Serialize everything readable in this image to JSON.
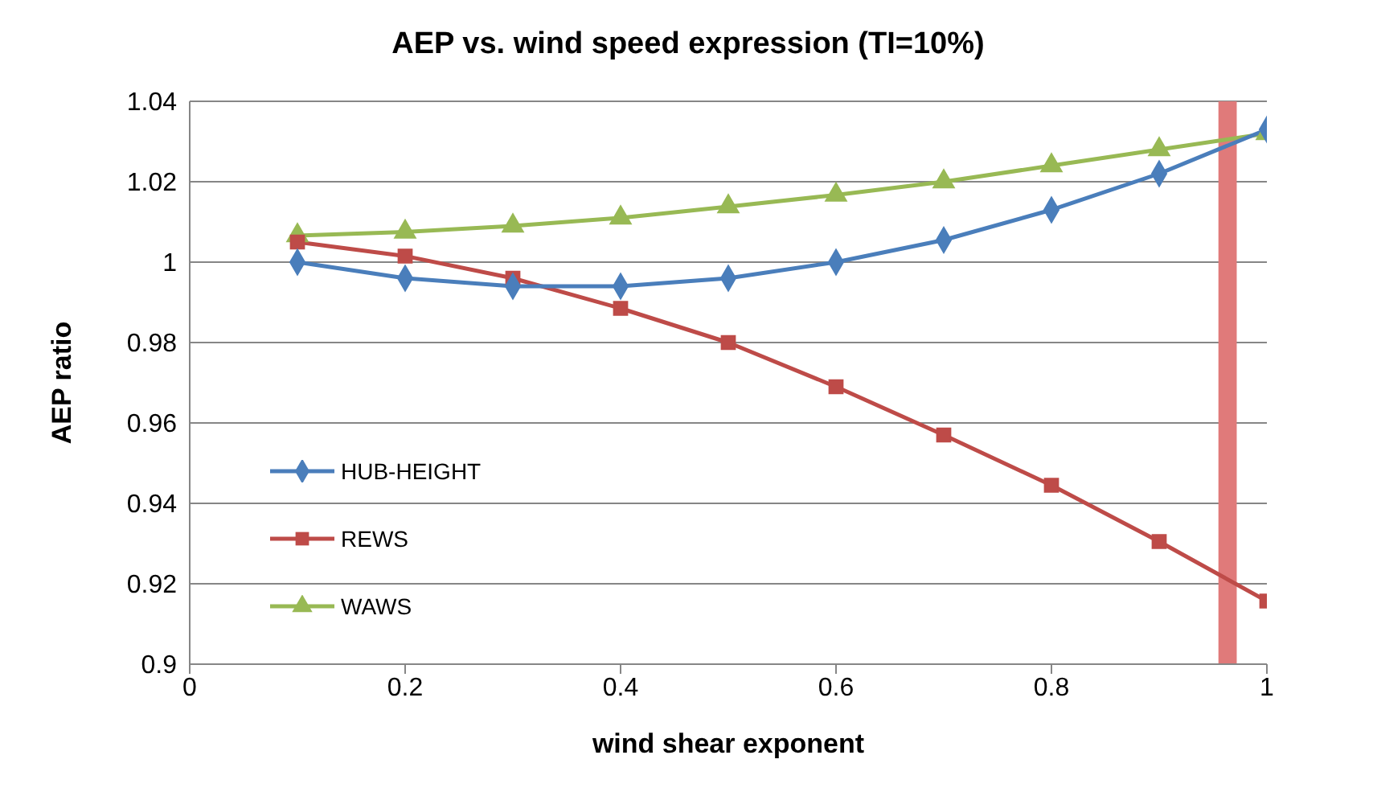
{
  "chart_data": {
    "type": "line",
    "title": "AEP vs. wind speed expression (TI=10%)",
    "xlabel": "wind shear exponent",
    "ylabel": "AEP ratio",
    "x": [
      0.1,
      0.2,
      0.3,
      0.4,
      0.5,
      0.6,
      0.7,
      0.8,
      0.9,
      1.0
    ],
    "series": [
      {
        "name": "HUB-HEIGHT",
        "color": "#4a7ebb",
        "marker": "diamond",
        "values": [
          1.0,
          0.996,
          0.994,
          0.994,
          0.996,
          1.0,
          1.0055,
          1.013,
          1.022,
          1.033
        ]
      },
      {
        "name": "REWS",
        "color": "#be4b48",
        "marker": "square",
        "values": [
          1.005,
          1.0015,
          0.996,
          0.9885,
          0.98,
          0.969,
          0.957,
          0.9445,
          0.9305,
          0.9157
        ]
      },
      {
        "name": "WAWS",
        "color": "#98b954",
        "marker": "triangle",
        "values": [
          1.0066,
          1.0075,
          1.009,
          1.011,
          1.0138,
          1.0167,
          1.02,
          1.024,
          1.028,
          1.032
        ]
      }
    ],
    "xlim": [
      0,
      1
    ],
    "xticks": [
      0,
      0.2,
      0.4,
      0.6,
      0.8,
      1
    ],
    "ylim": [
      0.9,
      1.04
    ],
    "yticks": [
      0.9,
      0.92,
      0.94,
      0.96,
      0.98,
      1,
      1.02,
      1.04
    ],
    "bands": [
      {
        "axis": "x",
        "from": 0.955,
        "to": 0.972,
        "color": "#e07a7a"
      }
    ],
    "grid": "y",
    "legend": "left",
    "line_style": "solid"
  }
}
